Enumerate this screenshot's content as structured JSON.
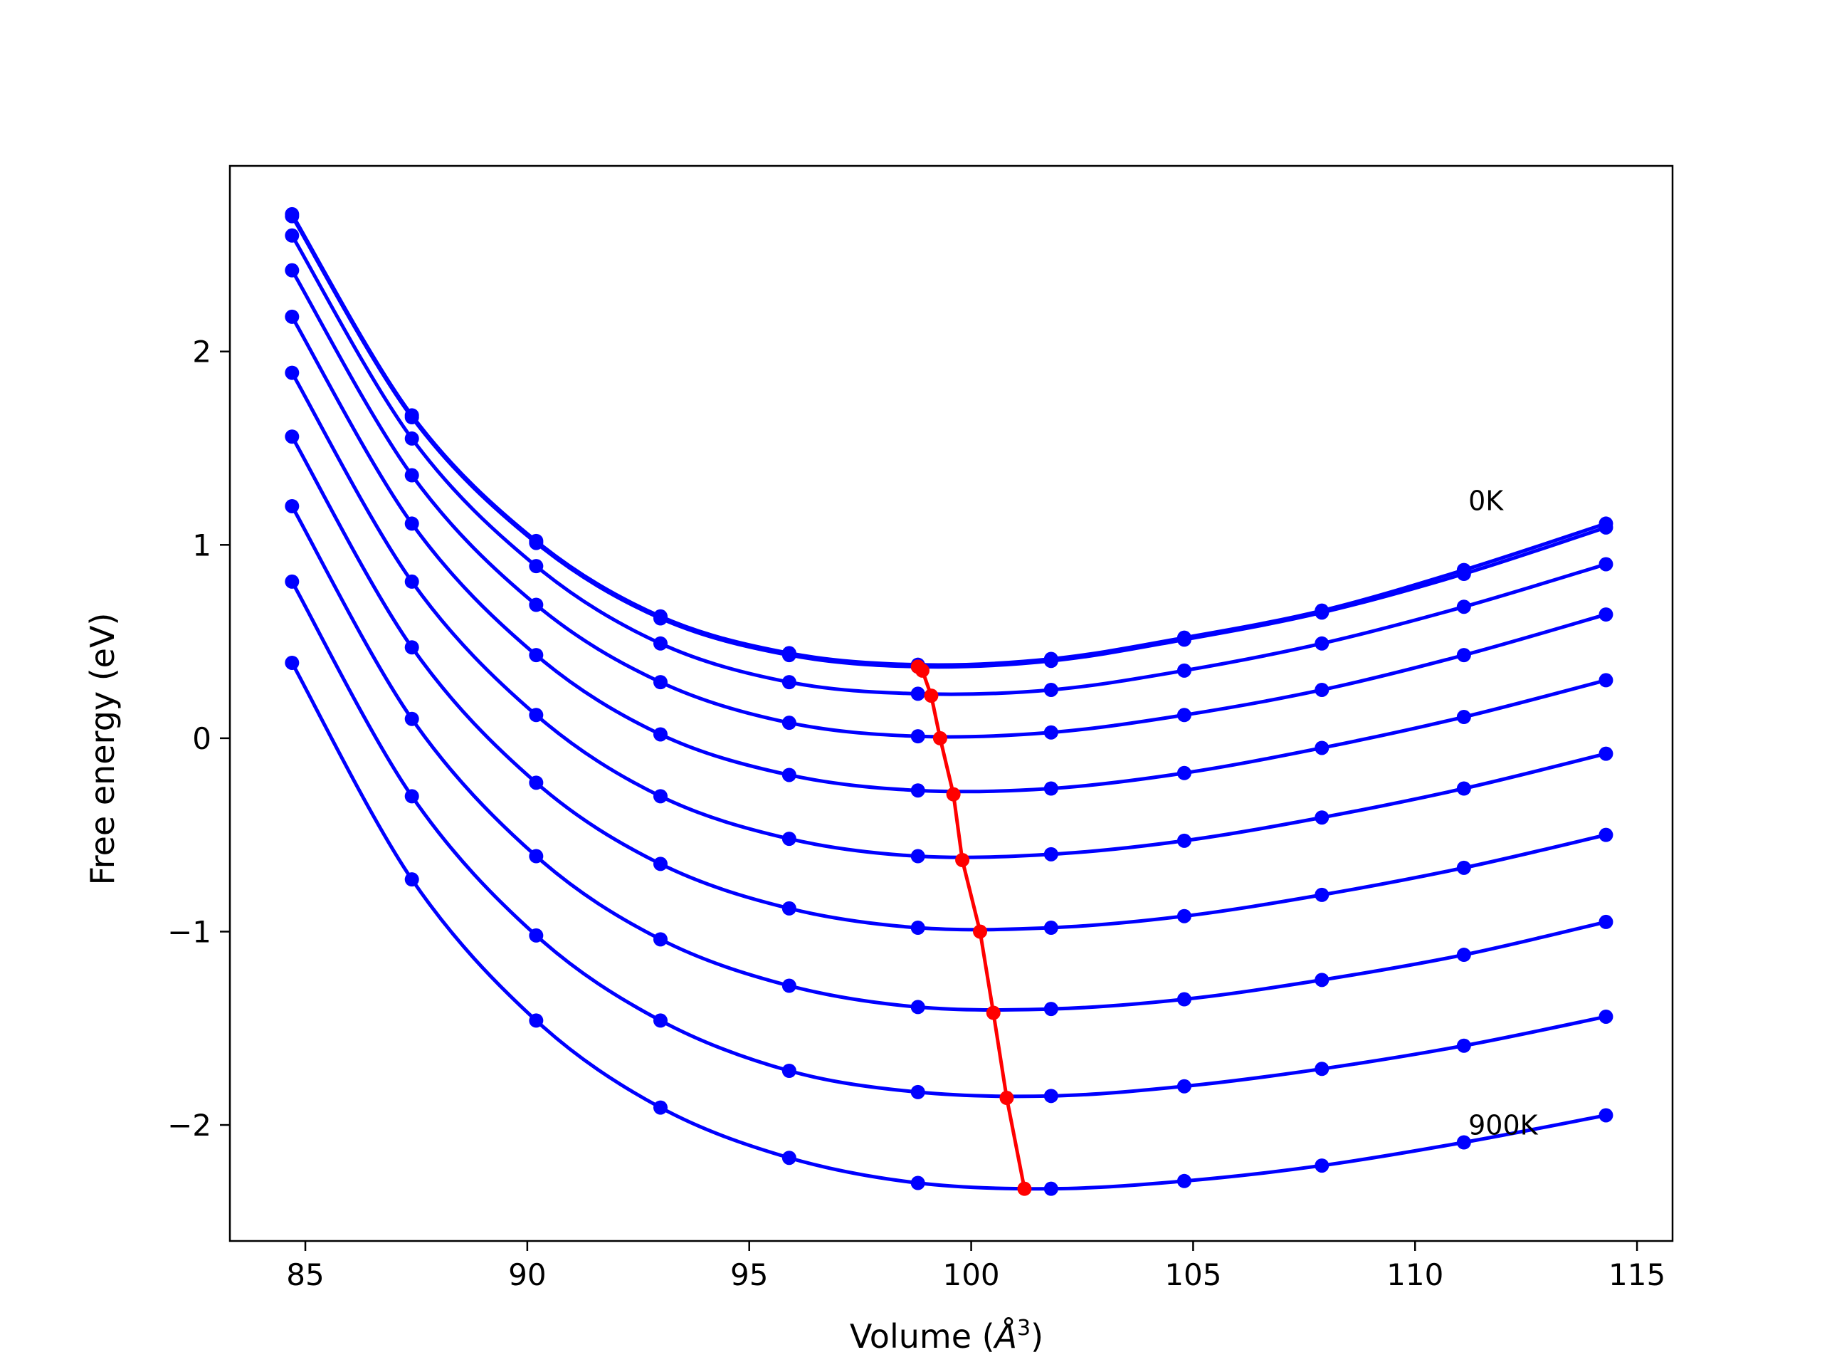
{
  "chart_data": {
    "type": "line",
    "title": "",
    "xlabel": "Volume (",
    "xlabel_unit": "Å",
    "xlabel_power": "3",
    "xlabel_close": ")",
    "ylabel": "Free energy (eV)",
    "xlim": [
      83.3,
      115.8
    ],
    "ylim": [
      -2.6,
      2.96
    ],
    "xticks": [
      85,
      90,
      95,
      100,
      105,
      110,
      115
    ],
    "xtick_labels": [
      "85",
      "90",
      "95",
      "100",
      "105",
      "110",
      "115"
    ],
    "yticks": [
      -2,
      -1,
      0,
      1,
      2
    ],
    "ytick_labels": [
      "−2",
      "−1",
      "0",
      "1",
      "2"
    ],
    "grid": false,
    "legend": "none",
    "annotations": [
      {
        "text": "0K",
        "x": 111.2,
        "y": 1.18
      },
      {
        "text": "900K",
        "x": 111.2,
        "y": -2.05
      }
    ],
    "x": [
      84.7,
      87.4,
      90.2,
      93.0,
      95.9,
      98.8,
      101.8,
      104.8,
      107.9,
      111.1,
      114.3
    ],
    "series": [
      {
        "values": [
          2.71,
          1.67,
          1.02,
          0.63,
          0.44,
          0.38,
          0.41,
          0.52,
          0.66,
          0.87,
          1.11
        ]
      },
      {
        "values": [
          2.7,
          1.66,
          1.01,
          0.62,
          0.43,
          0.37,
          0.4,
          0.51,
          0.65,
          0.85,
          1.09
        ]
      },
      {
        "values": [
          2.6,
          1.55,
          0.89,
          0.49,
          0.29,
          0.23,
          0.25,
          0.35,
          0.49,
          0.68,
          0.9
        ]
      },
      {
        "values": [
          2.42,
          1.36,
          0.69,
          0.29,
          0.08,
          0.01,
          0.03,
          0.12,
          0.25,
          0.43,
          0.64
        ]
      },
      {
        "values": [
          2.18,
          1.11,
          0.43,
          0.02,
          -0.19,
          -0.27,
          -0.26,
          -0.18,
          -0.05,
          0.11,
          0.3
        ]
      },
      {
        "values": [
          1.89,
          0.81,
          0.12,
          -0.3,
          -0.52,
          -0.61,
          -0.6,
          -0.53,
          -0.41,
          -0.26,
          -0.08
        ]
      },
      {
        "values": [
          1.56,
          0.47,
          -0.23,
          -0.65,
          -0.88,
          -0.98,
          -0.98,
          -0.92,
          -0.81,
          -0.67,
          -0.5
        ]
      },
      {
        "values": [
          1.2,
          0.1,
          -0.61,
          -1.04,
          -1.28,
          -1.39,
          -1.4,
          -1.35,
          -1.25,
          -1.12,
          -0.95
        ]
      },
      {
        "values": [
          0.81,
          -0.3,
          -1.02,
          -1.46,
          -1.72,
          -1.83,
          -1.85,
          -1.8,
          -1.71,
          -1.59,
          -1.44
        ]
      },
      {
        "values": [
          0.39,
          -0.73,
          -1.46,
          -1.91,
          -2.17,
          -2.3,
          -2.33,
          -2.29,
          -2.21,
          -2.09,
          -1.95
        ]
      }
    ],
    "minima": {
      "x": [
        98.8,
        98.9,
        99.1,
        99.3,
        99.6,
        99.8,
        100.2,
        100.5,
        100.8,
        101.2
      ],
      "y": [
        0.37,
        0.35,
        0.22,
        0.0,
        -0.29,
        -0.63,
        -1.0,
        -1.42,
        -1.86,
        -2.33
      ]
    },
    "colors": {
      "curves": "#0000ff",
      "minima": "#ff0000",
      "axes": "#000000"
    }
  }
}
